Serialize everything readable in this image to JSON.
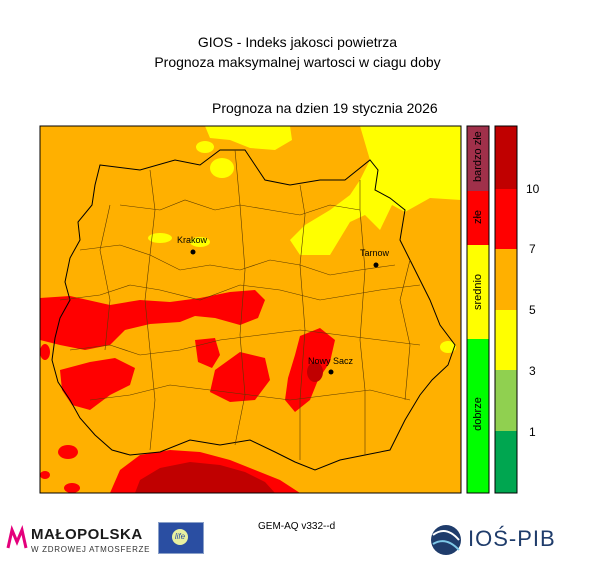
{
  "header": {
    "title_line1": "GIOS - Indeks jakosci powietrza",
    "title_line2": "Prognoza maksymalnej wartosci w ciagu doby",
    "forecast_date": "Prognoza na dzien  19 stycznia 2026"
  },
  "map": {
    "region": "Małopolska",
    "cities": [
      {
        "name": "Krakow"
      },
      {
        "name": "Tarnow"
      },
      {
        "name": "Nowy Sacz"
      }
    ],
    "colors": {
      "background": "#ffb000",
      "bardzo_dobry_low": "#00a650",
      "dobry": "#00ff00",
      "umiarkowany": "#90d050",
      "dostateczny": "#ffff00",
      "zly": "#ff0000",
      "bardzo_zly": "#c00000",
      "bardzo_zly_category": "#a0304a"
    }
  },
  "legend": {
    "categories": [
      {
        "label": "bardzo złe",
        "color": "#a0304a"
      },
      {
        "label": "złe",
        "color": "#ff0000"
      },
      {
        "label": "srednio",
        "color": "#ffff00"
      },
      {
        "label": "dobrze",
        "color": "#00ff00"
      }
    ],
    "scale_ticks": [
      "10",
      "7",
      "5",
      "3",
      "1"
    ],
    "scale_colors": [
      "#c00000",
      "#ff0000",
      "#ffb000",
      "#ffff00",
      "#90d050",
      "#00a650"
    ]
  },
  "footer": {
    "model": "GEM-AQ v332--d",
    "logo_malopolska": "MAŁOPOLSKA",
    "logo_malopolska_sub": "W ZDROWEJ ATMOSFERZE",
    "logo_ios": "IOŚ-PIB",
    "logo_eu": "life"
  }
}
